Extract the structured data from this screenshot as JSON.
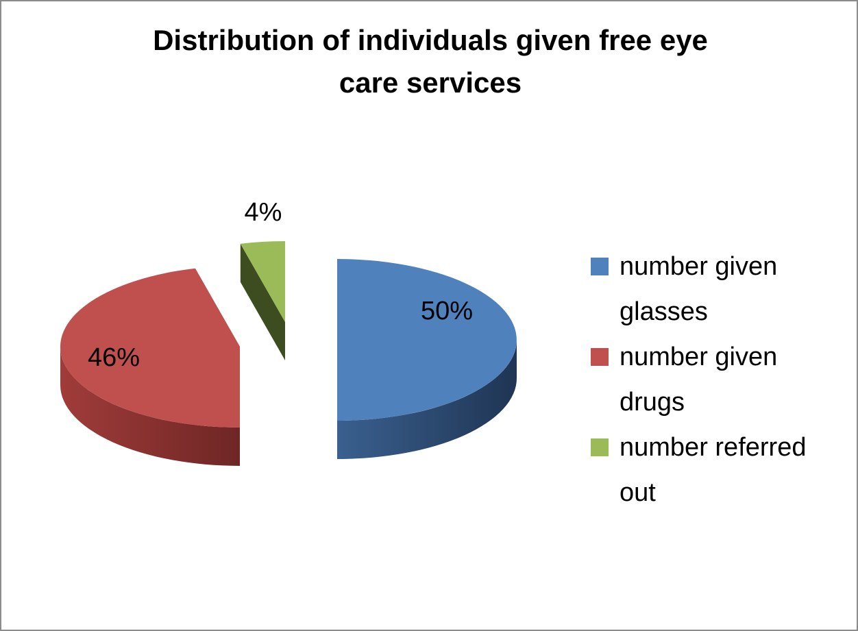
{
  "chart_data": {
    "type": "pie",
    "title_lines": [
      "Distribution of individuals given free eye",
      "care services"
    ],
    "categories": [
      "number given glasses",
      "number given drugs",
      "number referred out"
    ],
    "values": [
      50,
      46,
      4
    ],
    "data_labels": [
      "50%",
      "46%",
      "4%"
    ],
    "legend": {
      "placement": "right",
      "entries": [
        {
          "lines": [
            "number given",
            "glasses"
          ]
        },
        {
          "lines": [
            "number given",
            "drugs"
          ]
        },
        {
          "lines": [
            "number referred",
            "out"
          ]
        }
      ]
    },
    "colors": {
      "top": [
        "#4f81bd",
        "#c0504d",
        "#9bbb59"
      ],
      "side_light": [
        "#3a608f",
        "#a03c3a",
        "#6e8a3e"
      ],
      "side_dark": [
        "#1f3553",
        "#6e2625",
        "#3d4d20"
      ]
    },
    "style": "3d-exploded"
  }
}
